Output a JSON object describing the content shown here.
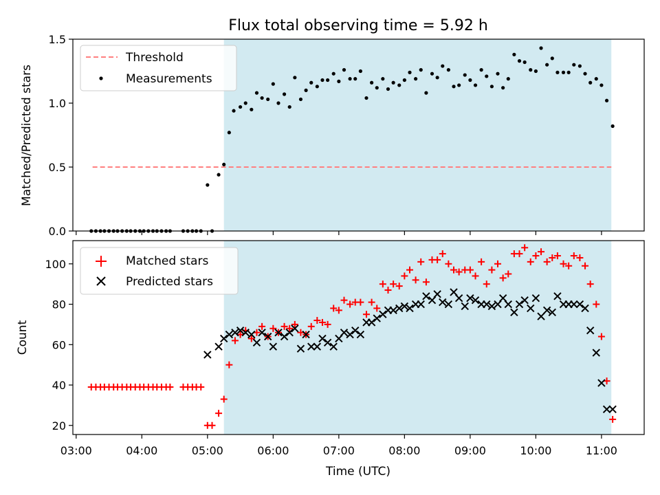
{
  "chart_data": [
    {
      "type": "scatter",
      "title": "Flux total observing time = 5.92 h",
      "xlabel": "",
      "ylabel": "Matched/Predicted stars",
      "xlim": [
        2.95,
        11.65
      ],
      "ylim": [
        0,
        1.5
      ],
      "y_ticks": [
        "0.0",
        "0.5",
        "1.0",
        "1.5"
      ],
      "x_ticks": [
        3,
        4,
        5,
        6,
        7,
        8,
        9,
        10,
        11
      ],
      "x_tick_labels_shown": false,
      "shaded_region": {
        "x_start": 5.25,
        "x_end": 11.15,
        "color": "#add8e6"
      },
      "legend_position": "top-left",
      "series": [
        {
          "name": "Threshold",
          "kind": "dashed-line",
          "color": "#ff7f7f",
          "x": [
            3.25,
            11.15
          ],
          "y": [
            0.5,
            0.5
          ]
        },
        {
          "name": "Measurements",
          "kind": "points",
          "color": "#000000",
          "x": [
            3.23,
            3.3,
            3.37,
            3.43,
            3.5,
            3.57,
            3.63,
            3.7,
            3.77,
            3.83,
            3.9,
            3.97,
            4.03,
            4.1,
            4.17,
            4.23,
            4.3,
            4.37,
            4.43,
            4.63,
            4.7,
            4.77,
            4.83,
            4.9,
            5.0,
            5.07,
            5.17,
            5.25,
            5.33,
            5.4,
            5.5,
            5.58,
            5.67,
            5.75,
            5.83,
            5.92,
            6.0,
            6.08,
            6.17,
            6.25,
            6.33,
            6.42,
            6.5,
            6.58,
            6.67,
            6.75,
            6.83,
            6.92,
            7.0,
            7.08,
            7.17,
            7.25,
            7.33,
            7.42,
            7.5,
            7.58,
            7.67,
            7.75,
            7.83,
            7.92,
            8.0,
            8.08,
            8.17,
            8.25,
            8.33,
            8.42,
            8.5,
            8.58,
            8.67,
            8.75,
            8.83,
            8.92,
            9.0,
            9.08,
            9.17,
            9.25,
            9.33,
            9.42,
            9.5,
            9.58,
            9.67,
            9.75,
            9.83,
            9.92,
            10.0,
            10.08,
            10.17,
            10.25,
            10.33,
            10.42,
            10.5,
            10.58,
            10.67,
            10.75,
            10.83,
            10.92,
            11.0,
            11.08,
            11.17
          ],
          "y": [
            0,
            0,
            0,
            0,
            0,
            0,
            0,
            0,
            0,
            0,
            0,
            0,
            0,
            0,
            0,
            0,
            0,
            0,
            0,
            0,
            0,
            0,
            0,
            0,
            0.36,
            0,
            0.44,
            0.52,
            0.77,
            0.94,
            0.97,
            1.0,
            0.95,
            1.08,
            1.04,
            1.03,
            1.15,
            1.0,
            1.07,
            0.97,
            1.2,
            1.03,
            1.1,
            1.16,
            1.13,
            1.18,
            1.18,
            1.23,
            1.17,
            1.26,
            1.19,
            1.19,
            1.25,
            1.04,
            1.16,
            1.12,
            1.19,
            1.11,
            1.16,
            1.14,
            1.18,
            1.24,
            1.19,
            1.26,
            1.08,
            1.23,
            1.2,
            1.29,
            1.26,
            1.13,
            1.14,
            1.22,
            1.18,
            1.14,
            1.26,
            1.21,
            1.13,
            1.23,
            1.12,
            1.19,
            1.38,
            1.33,
            1.32,
            1.26,
            1.25,
            1.43,
            1.3,
            1.35,
            1.24,
            1.24,
            1.24,
            1.3,
            1.29,
            1.23,
            1.16,
            1.19,
            1.14,
            1.02,
            0.82
          ]
        }
      ]
    },
    {
      "type": "scatter",
      "title": "",
      "xlabel": "Time (UTC)",
      "ylabel": "Count",
      "xlim": [
        2.95,
        11.65
      ],
      "ylim": [
        15.5,
        111.5
      ],
      "y_ticks": [
        "20",
        "40",
        "60",
        "80",
        "100"
      ],
      "x_ticks": [
        3,
        4,
        5,
        6,
        7,
        8,
        9,
        10,
        11
      ],
      "x_tick_labels": [
        "03:00",
        "04:00",
        "05:00",
        "06:00",
        "07:00",
        "08:00",
        "09:00",
        "10:00",
        "11:00"
      ],
      "shaded_region": {
        "x_start": 5.25,
        "x_end": 11.15,
        "color": "#add8e6"
      },
      "legend_position": "top-left",
      "series": [
        {
          "name": "Matched stars",
          "kind": "plus",
          "color": "#ff0000",
          "x": [
            3.23,
            3.3,
            3.37,
            3.43,
            3.5,
            3.57,
            3.63,
            3.7,
            3.77,
            3.83,
            3.9,
            3.97,
            4.03,
            4.1,
            4.17,
            4.23,
            4.3,
            4.37,
            4.43,
            4.63,
            4.7,
            4.77,
            4.83,
            4.9,
            5.0,
            5.07,
            5.17,
            5.25,
            5.33,
            5.42,
            5.5,
            5.58,
            5.67,
            5.75,
            5.83,
            5.92,
            6.0,
            6.08,
            6.17,
            6.25,
            6.33,
            6.42,
            6.5,
            6.58,
            6.67,
            6.75,
            6.83,
            6.92,
            7.0,
            7.08,
            7.17,
            7.25,
            7.33,
            7.42,
            7.5,
            7.58,
            7.67,
            7.75,
            7.83,
            7.92,
            8.0,
            8.08,
            8.17,
            8.25,
            8.33,
            8.42,
            8.5,
            8.58,
            8.67,
            8.75,
            8.83,
            8.92,
            9.0,
            9.08,
            9.17,
            9.25,
            9.33,
            9.42,
            9.5,
            9.58,
            9.67,
            9.75,
            9.83,
            9.92,
            10.0,
            10.08,
            10.17,
            10.25,
            10.33,
            10.42,
            10.5,
            10.58,
            10.67,
            10.75,
            10.83,
            10.92,
            11.0,
            11.08,
            11.17
          ],
          "y": [
            39,
            39,
            39,
            39,
            39,
            39,
            39,
            39,
            39,
            39,
            39,
            39,
            39,
            39,
            39,
            39,
            39,
            39,
            39,
            39,
            39,
            39,
            39,
            39,
            20,
            20,
            26,
            33,
            50,
            62,
            65,
            67,
            63,
            66,
            69,
            64,
            68,
            66,
            69,
            68,
            70,
            66,
            65,
            69,
            72,
            71,
            70,
            78,
            77,
            82,
            80,
            81,
            81,
            75,
            81,
            78,
            90,
            87,
            90,
            89,
            94,
            97,
            92,
            101,
            91,
            102,
            102,
            105,
            100,
            97,
            96,
            97,
            97,
            94,
            101,
            90,
            97,
            100,
            93,
            95,
            105,
            105,
            108,
            101,
            104,
            106,
            101,
            103,
            104,
            100,
            99,
            104,
            103,
            99,
            90,
            80,
            64,
            42,
            23
          ]
        },
        {
          "name": "Predicted stars",
          "kind": "cross",
          "color": "#000000",
          "x": [
            5.0,
            5.17,
            5.25,
            5.33,
            5.42,
            5.5,
            5.58,
            5.67,
            5.75,
            5.83,
            5.92,
            6.0,
            6.08,
            6.17,
            6.25,
            6.33,
            6.42,
            6.5,
            6.58,
            6.67,
            6.75,
            6.83,
            6.92,
            7.0,
            7.08,
            7.17,
            7.25,
            7.33,
            7.42,
            7.5,
            7.58,
            7.67,
            7.75,
            7.83,
            7.92,
            8.0,
            8.08,
            8.17,
            8.25,
            8.33,
            8.42,
            8.5,
            8.58,
            8.67,
            8.75,
            8.83,
            8.92,
            9.0,
            9.08,
            9.17,
            9.25,
            9.33,
            9.42,
            9.5,
            9.58,
            9.67,
            9.75,
            9.83,
            9.92,
            10.0,
            10.08,
            10.17,
            10.25,
            10.33,
            10.42,
            10.5,
            10.58,
            10.67,
            10.75,
            10.83,
            10.92,
            11.0,
            11.08,
            11.17
          ],
          "y": [
            55,
            59,
            63,
            65,
            66,
            67,
            66,
            65,
            61,
            66,
            64,
            59,
            66,
            64,
            66,
            68,
            58,
            65,
            59,
            59,
            63,
            61,
            59,
            63,
            66,
            65,
            67,
            65,
            71,
            71,
            73,
            75,
            77,
            77,
            78,
            79,
            78,
            80,
            80,
            84,
            82,
            85,
            81,
            80,
            86,
            83,
            79,
            83,
            82,
            80,
            80,
            79,
            80,
            83,
            80,
            76,
            80,
            82,
            78,
            83,
            74,
            77,
            76,
            84,
            80,
            80,
            80,
            80,
            78,
            67,
            56,
            41,
            28,
            28
          ]
        }
      ]
    }
  ]
}
